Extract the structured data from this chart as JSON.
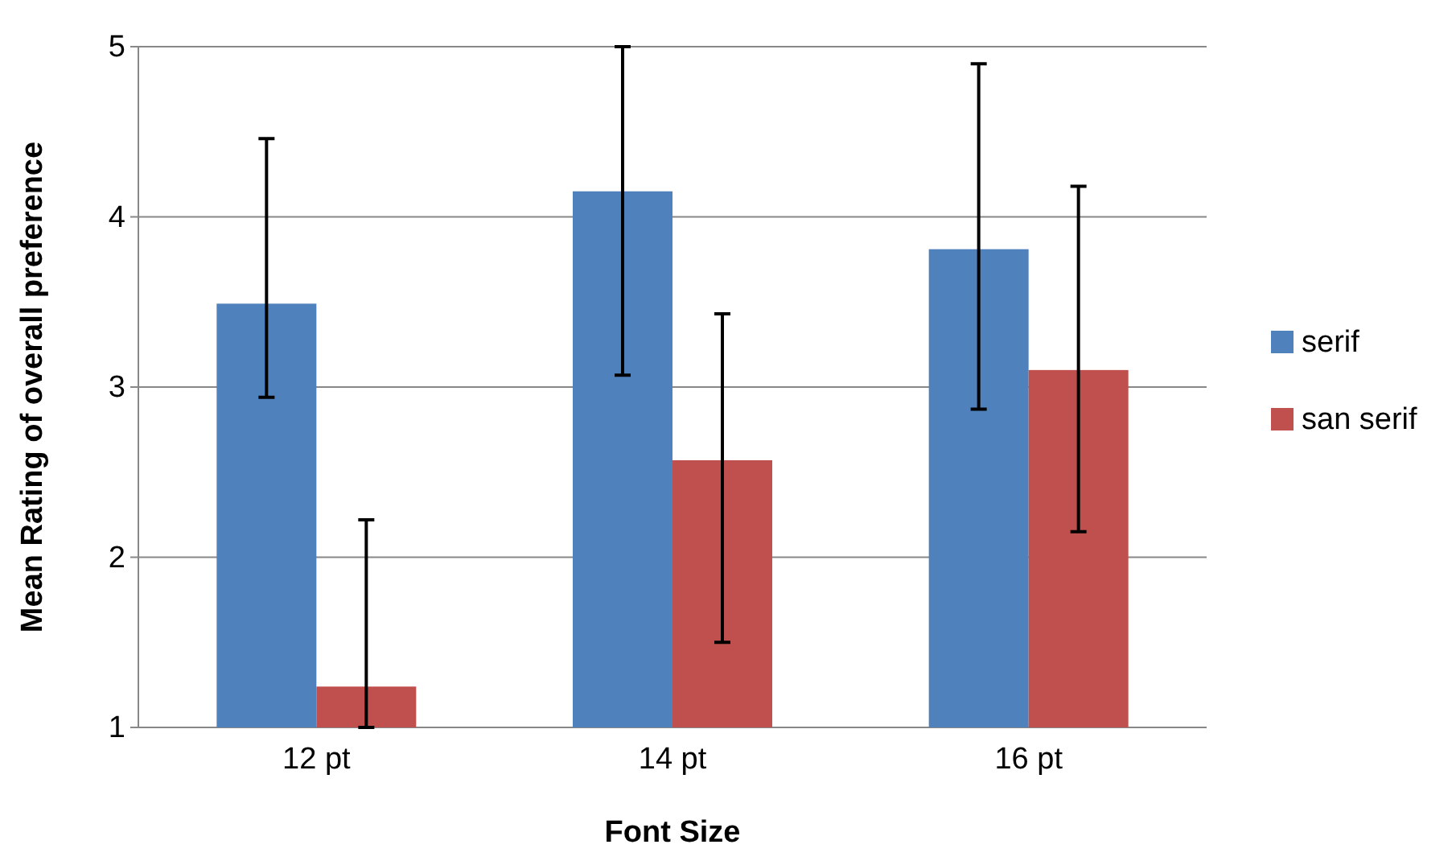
{
  "chart_data": {
    "type": "bar",
    "xlabel": "Font Size",
    "ylabel": "Mean Rating of overall preference",
    "categories": [
      "12 pt",
      "14 pt",
      "16 pt"
    ],
    "series": [
      {
        "name": "serif",
        "color": "#4f81bd",
        "values": [
          3.49,
          4.15,
          3.81
        ],
        "errors": [
          [
            2.94,
            4.46
          ],
          [
            3.07,
            5.0
          ],
          [
            2.87,
            4.9
          ]
        ]
      },
      {
        "name": "san serif",
        "color": "#c0504d",
        "values": [
          1.24,
          2.57,
          3.1
        ],
        "errors": [
          [
            1.0,
            2.22
          ],
          [
            1.5,
            3.43
          ],
          [
            2.15,
            4.18
          ]
        ]
      }
    ],
    "ylim": [
      1,
      5
    ],
    "yticks": [
      1,
      2,
      3,
      4,
      5
    ],
    "grid": "y",
    "legend": "right"
  }
}
